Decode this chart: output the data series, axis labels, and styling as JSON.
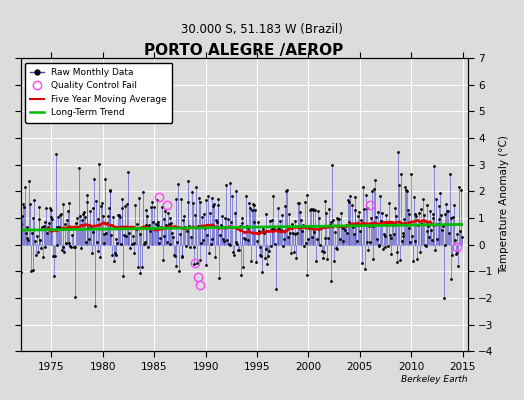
{
  "title": "PORTO ALEGRE /AEROP",
  "subtitle": "30.000 S, 51.183 W (Brazil)",
  "ylabel": "Temperature Anomaly (°C)",
  "xlim": [
    1972.0,
    2015.5
  ],
  "ylim": [
    -4,
    7
  ],
  "yticks": [
    -4,
    -3,
    -2,
    -1,
    0,
    1,
    2,
    3,
    4,
    5,
    6,
    7
  ],
  "xticks": [
    1975,
    1980,
    1985,
    1990,
    1995,
    2000,
    2005,
    2010,
    2015
  ],
  "bg_color": "#dcdcdc",
  "plot_bg": "#dcdcdc",
  "grid_color": "#ffffff",
  "watermark": "Berkeley Earth",
  "seed": 17,
  "start_year": 1972,
  "end_year": 2014,
  "base_level": 0.65,
  "noise_std": 0.85,
  "trend_per_year": 0.005,
  "moving_avg_window": 60,
  "qc_times": [
    1985.5,
    1986.2,
    1989.0,
    1989.3,
    1989.5,
    2006.0,
    2014.5
  ],
  "qc_values": [
    1.8,
    1.5,
    -0.7,
    -1.2,
    -1.5,
    1.5,
    -0.1
  ],
  "line_color": "#4444cc",
  "dot_color": "#000000",
  "ma_color": "#dd0000",
  "trend_color": "#00bb00",
  "qc_color": "#ff44ff"
}
